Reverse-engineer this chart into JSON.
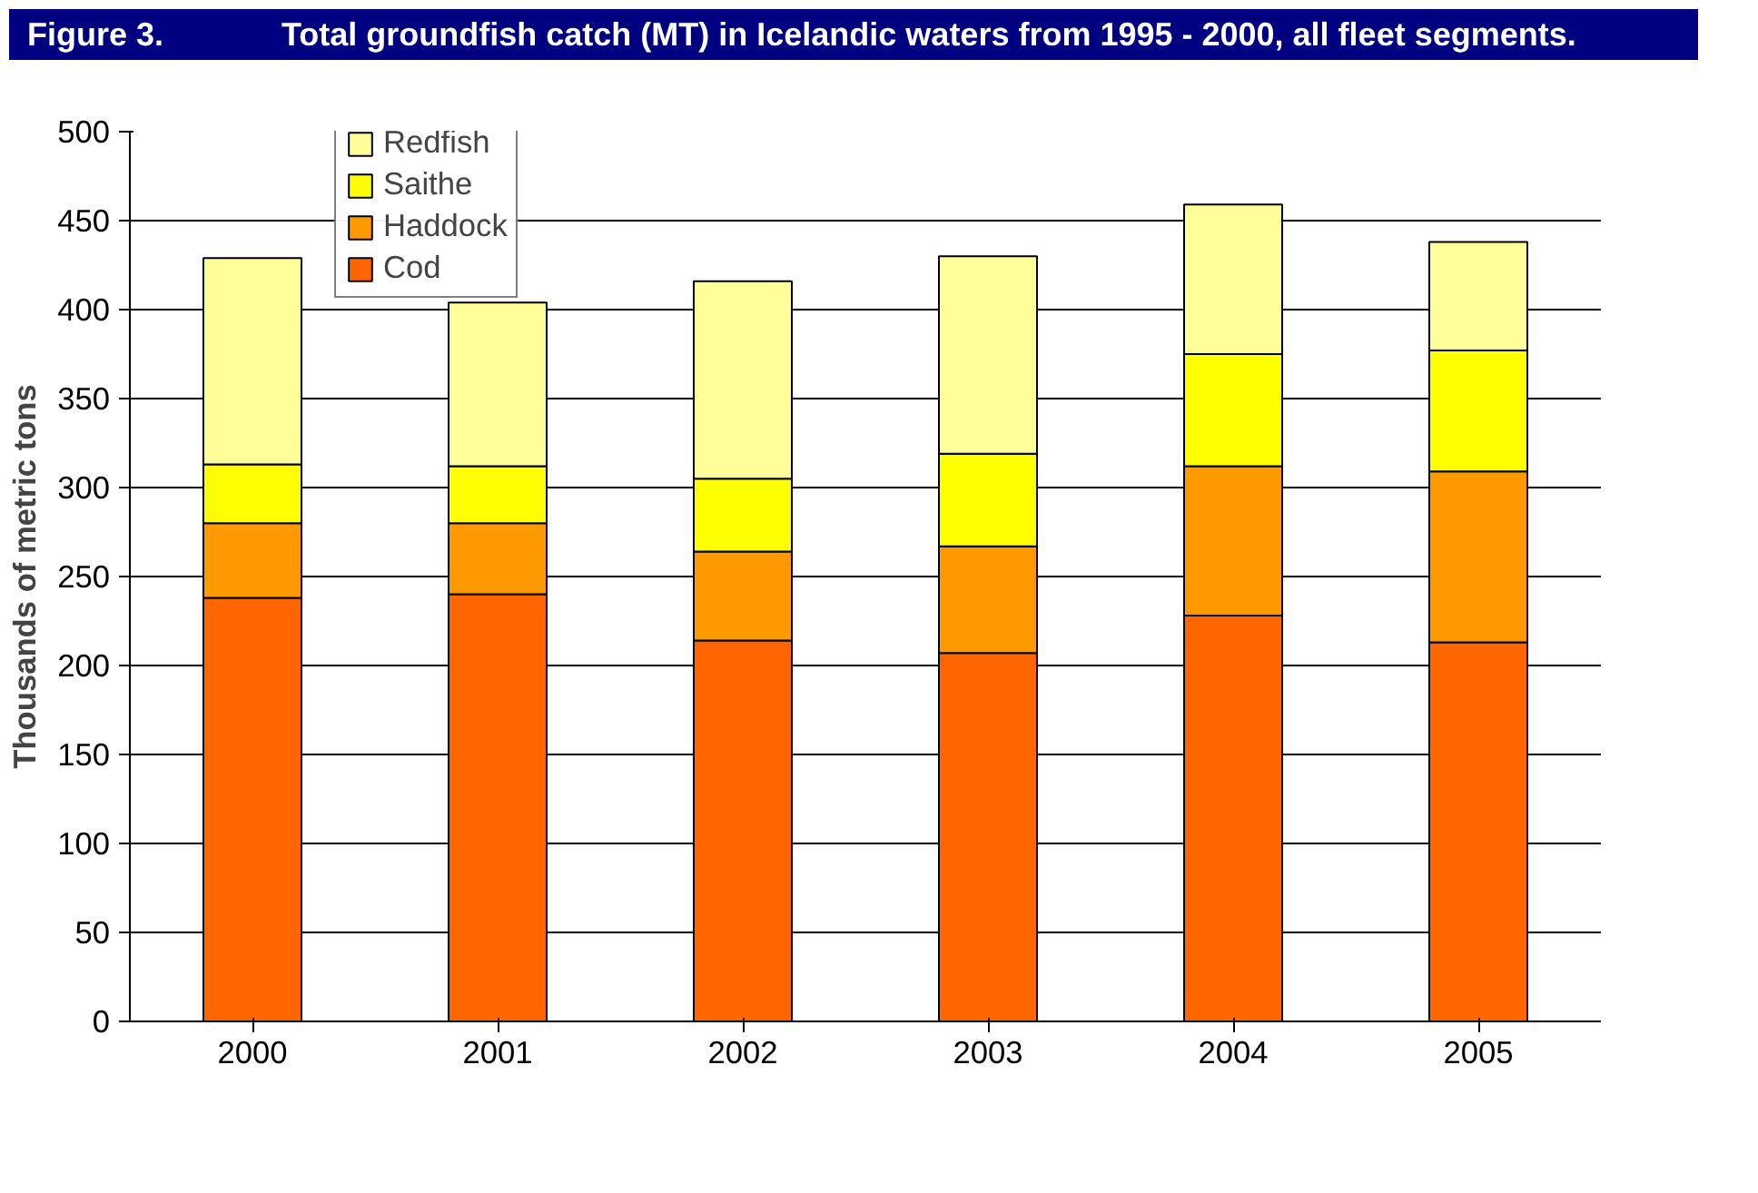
{
  "chart_data": {
    "type": "bar",
    "title": "Figure 3.",
    "subtitle": "Total groundfish catch (MT) in Icelandic waters from 1995 - 2000, all fleet segments.",
    "ylabel": "Thousands of metric tons",
    "categories": [
      "2000",
      "2001",
      "2002",
      "2003",
      "2004",
      "2005"
    ],
    "stacked": true,
    "series": [
      {
        "name": "Cod",
        "color": "#ff6600",
        "values": [
          238,
          240,
          214,
          207,
          228,
          213
        ]
      },
      {
        "name": "Haddock",
        "color": "#ff9900",
        "values": [
          42,
          40,
          50,
          60,
          84,
          96
        ]
      },
      {
        "name": "Saithe",
        "color": "#ffff00",
        "values": [
          33,
          32,
          41,
          52,
          63,
          68
        ]
      },
      {
        "name": "Redfish",
        "color": "#ffff99",
        "values": [
          116,
          92,
          111,
          111,
          84,
          61
        ]
      }
    ],
    "ylim": [
      0,
      500
    ],
    "yticks": [
      0,
      50,
      100,
      150,
      200,
      250,
      300,
      350,
      400,
      450,
      500
    ],
    "grid": "y",
    "legend": "top left"
  }
}
